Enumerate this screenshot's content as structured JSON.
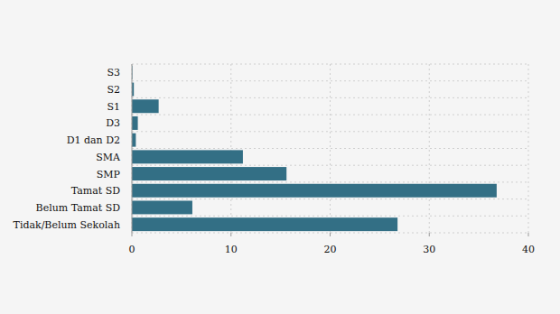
{
  "chart_data": {
    "type": "bar",
    "orientation": "horizontal",
    "categories": [
      "S3",
      "S2",
      "S1",
      "D3",
      "D1 dan D2",
      "SMA",
      "SMP",
      "Tamat SD",
      "Belum Tamat SD",
      "Tidak/Belum Sekolah"
    ],
    "values": [
      0.05,
      0.2,
      2.7,
      0.6,
      0.4,
      11.2,
      15.6,
      36.8,
      6.1,
      26.8
    ],
    "color": "#336f85",
    "xlim": [
      0,
      40
    ],
    "xticks": [
      0,
      10,
      20,
      30,
      40
    ],
    "grid": true
  }
}
